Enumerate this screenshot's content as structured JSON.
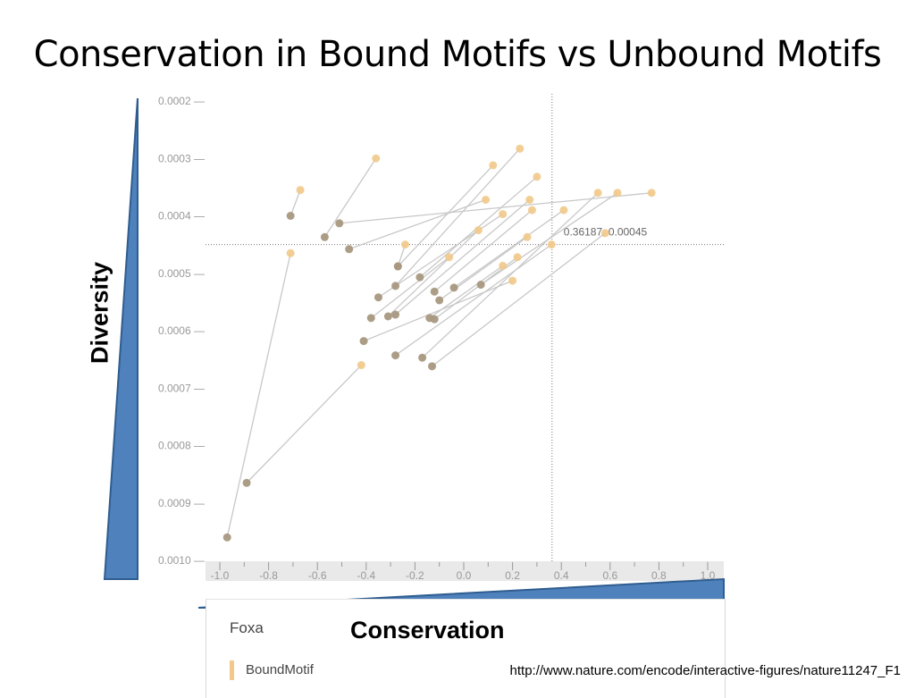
{
  "slide": {
    "title": "Conservation in Bound Motifs vs Unbound Motifs",
    "source_url": "http://www.nature.com/encode/interactive-figures/nature11247_F1"
  },
  "annotations": {
    "y_arrow_label": "Diversity",
    "x_arrow_label": "Conservation",
    "arrow_color": "#4f81bd"
  },
  "legend": {
    "title": "Foxa",
    "entries": [
      {
        "label": "BoundMotif",
        "color": "#f1c98a"
      }
    ]
  },
  "colors": {
    "bound": "#f1c98a",
    "unbound": "#a89880",
    "connector": "#c8c8c8",
    "tick": "#999999"
  },
  "chart_data": {
    "type": "scatter",
    "title": "",
    "xlabel": "",
    "ylabel": "",
    "x_ticks": [
      "-1.0",
      "-0.8",
      "-0.6",
      "-0.4",
      "-0.2",
      "0.0",
      "0.2",
      "0.4",
      "0.6",
      "0.8",
      "1.0"
    ],
    "y_ticks": [
      "0.0002",
      "0.0003",
      "0.0004",
      "0.0005",
      "0.0006",
      "0.0007",
      "0.0008",
      "0.0009",
      "0.0010"
    ],
    "xlim": [
      -1.0,
      1.0
    ],
    "ylim": [
      0.0002,
      0.001
    ],
    "y_inverted": true,
    "grid": false,
    "crosshair": {
      "x": 0.36187,
      "y": 0.00045,
      "label": "0.36187, 0.00045"
    },
    "series": [
      {
        "name": "BoundMotif",
        "role": "bound",
        "color": "#f1c98a"
      },
      {
        "name": "",
        "role": "unbound",
        "color": "#a89880"
      }
    ],
    "pairs": [
      {
        "unbound": [
          -0.97,
          0.00096
        ],
        "bound": [
          -0.71,
          0.000465
        ]
      },
      {
        "unbound": [
          -0.89,
          0.000865
        ],
        "bound": [
          -0.42,
          0.00066
        ]
      },
      {
        "unbound": [
          -0.71,
          0.0004
        ],
        "bound": [
          -0.67,
          0.000355
        ]
      },
      {
        "unbound": [
          -0.57,
          0.000437
        ],
        "bound": [
          -0.36,
          0.0003
        ]
      },
      {
        "unbound": [
          -0.51,
          0.000413
        ],
        "bound": [
          0.77,
          0.00036
        ]
      },
      {
        "unbound": [
          -0.47,
          0.000458
        ],
        "bound": [
          0.09,
          0.000372
        ]
      },
      {
        "unbound": [
          -0.27,
          0.000488
        ],
        "bound": [
          0.12,
          0.000312
        ]
      },
      {
        "unbound": [
          -0.27,
          0.000488
        ],
        "bound": [
          -0.24,
          0.00045
        ]
      },
      {
        "unbound": [
          -0.28,
          0.000522
        ],
        "bound": [
          0.23,
          0.000283
        ]
      },
      {
        "unbound": [
          -0.18,
          0.000507
        ],
        "bound": [
          0.3,
          0.000332
        ]
      },
      {
        "unbound": [
          -0.35,
          0.000542
        ],
        "bound": [
          0.16,
          0.000397
        ]
      },
      {
        "unbound": [
          -0.38,
          0.000578
        ],
        "bound": [
          -0.06,
          0.000472
        ]
      },
      {
        "unbound": [
          -0.31,
          0.000575
        ],
        "bound": [
          0.06,
          0.000425
        ]
      },
      {
        "unbound": [
          -0.28,
          0.000572
        ],
        "bound": [
          0.27,
          0.000372
        ]
      },
      {
        "unbound": [
          -0.12,
          0.000532
        ],
        "bound": [
          0.28,
          0.00039
        ]
      },
      {
        "unbound": [
          -0.1,
          0.000547
        ],
        "bound": [
          0.26,
          0.000437
        ]
      },
      {
        "unbound": [
          -0.04,
          0.000525
        ],
        "bound": [
          0.41,
          0.00039
        ]
      },
      {
        "unbound": [
          -0.14,
          0.000578
        ],
        "bound": [
          0.16,
          0.000487
        ]
      },
      {
        "unbound": [
          -0.12,
          0.00058
        ],
        "bound": [
          0.22,
          0.000472
        ]
      },
      {
        "unbound": [
          -0.41,
          0.000618
        ],
        "bound": [
          0.2,
          0.000513
        ]
      },
      {
        "unbound": [
          0.07,
          0.00052
        ],
        "bound": [
          0.63,
          0.00036
        ]
      },
      {
        "unbound": [
          -0.28,
          0.000643
        ],
        "bound": [
          0.36,
          0.00045
        ]
      },
      {
        "unbound": [
          -0.17,
          0.000647
        ],
        "bound": [
          0.55,
          0.00036
        ]
      },
      {
        "unbound": [
          -0.13,
          0.000662
        ],
        "bound": [
          0.58,
          0.00043
        ]
      }
    ]
  }
}
